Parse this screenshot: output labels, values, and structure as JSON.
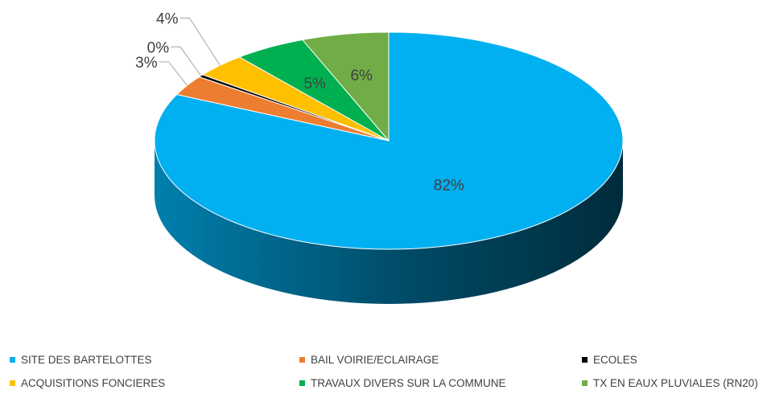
{
  "chart_data": {
    "type": "pie",
    "style": "3d",
    "title": "",
    "slices": [
      {
        "label": "SITE DES BARTELOTTES",
        "value": 82,
        "display": "82%",
        "color": "#00B0F0"
      },
      {
        "label": "BAIL VOIRIE/ECLAIRAGE",
        "value": 3,
        "display": "3%",
        "color": "#ED7D31"
      },
      {
        "label": "ECOLES",
        "value": 0.4,
        "display": "0%",
        "color": "#000000"
      },
      {
        "label": "ACQUISITIONS FONCIERES",
        "value": 3.6,
        "display": "4%",
        "color": "#FFC000"
      },
      {
        "label": "TRAVAUX DIVERS SUR LA COMMUNE",
        "value": 5,
        "display": "5%",
        "color": "#00B050"
      },
      {
        "label": "TX EN EAUX PLUVIALES (RN20)",
        "value": 6,
        "display": "6%",
        "color": "#70AD47"
      }
    ],
    "legend_position": "bottom"
  }
}
